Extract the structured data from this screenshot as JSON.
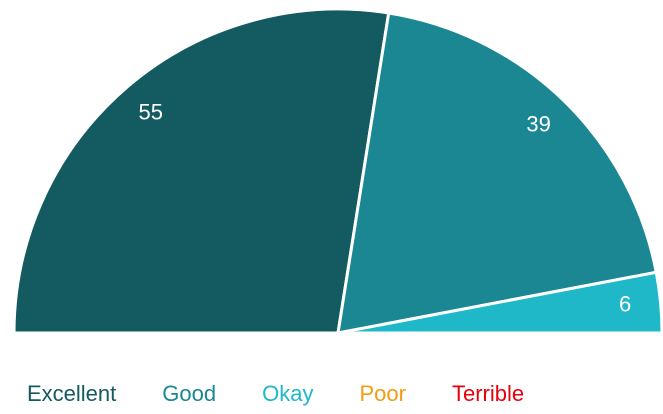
{
  "chart_data": {
    "type": "semi-pie",
    "categories": [
      "Excellent",
      "Good",
      "Okay",
      "Poor",
      "Terrible"
    ],
    "values": [
      55,
      39,
      6,
      0,
      0
    ],
    "colors": [
      "#135b60",
      "#1a8793",
      "#1fb8c8",
      "#f39c12",
      "#e8000b"
    ],
    "legend": "bottom"
  }
}
